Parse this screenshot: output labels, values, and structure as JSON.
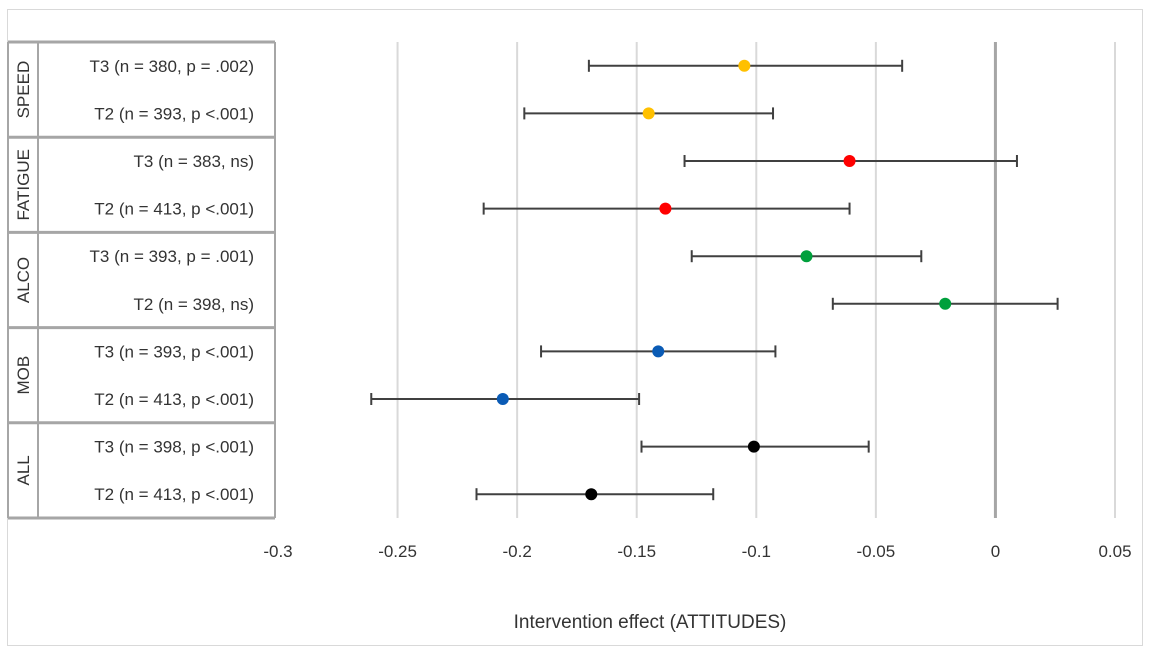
{
  "chart_data": {
    "type": "scatter",
    "subtype": "forest-plot-with-error-bars",
    "title": "",
    "xlabel": "Intervention effect (ATTITUDES)",
    "ylabel": "",
    "xlim": [
      -0.3,
      0.05
    ],
    "xticks": [
      -0.3,
      -0.25,
      -0.2,
      -0.15,
      -0.1,
      -0.05,
      0,
      0.05
    ],
    "xtick_labels": [
      "-0.3",
      "-0.25",
      "-0.2",
      "-0.15",
      "-0.1",
      "-0.05",
      "0",
      "0.05"
    ],
    "grid": true,
    "reference_line": 0,
    "groups": [
      {
        "name": "SPEED",
        "color": "#FFC000",
        "rows": [
          {
            "label": "T3 (n = 380, p = .002)",
            "estimate": -0.105,
            "lower": -0.17,
            "upper": -0.039
          },
          {
            "label": "T2 (n = 393, p <.001)",
            "estimate": -0.145,
            "lower": -0.197,
            "upper": -0.093
          }
        ]
      },
      {
        "name": "FATIGUE",
        "color": "#FF0000",
        "rows": [
          {
            "label": "T3 (n = 383, ns)",
            "estimate": -0.061,
            "lower": -0.13,
            "upper": 0.009
          },
          {
            "label": "T2 (n = 413, p <.001)",
            "estimate": -0.138,
            "lower": -0.214,
            "upper": -0.061
          }
        ]
      },
      {
        "name": "ALCO",
        "color": "#00A03C",
        "rows": [
          {
            "label": "T3 (n = 393, p = .001)",
            "estimate": -0.079,
            "lower": -0.127,
            "upper": -0.031
          },
          {
            "label": "T2 (n = 398, ns)",
            "estimate": -0.021,
            "lower": -0.068,
            "upper": 0.026
          }
        ]
      },
      {
        "name": "MOB",
        "color": "#0A5BB5",
        "rows": [
          {
            "label": "T3 (n = 393, p <.001)",
            "estimate": -0.141,
            "lower": -0.19,
            "upper": -0.092
          },
          {
            "label": "T2 (n = 413, p <.001)",
            "estimate": -0.206,
            "lower": -0.261,
            "upper": -0.149
          }
        ]
      },
      {
        "name": "ALL",
        "color": "#000000",
        "rows": [
          {
            "label": "T3 (n = 398, p <.001)",
            "estimate": -0.101,
            "lower": -0.148,
            "upper": -0.053
          },
          {
            "label": "T2 (n = 413, p <.001)",
            "estimate": -0.169,
            "lower": -0.217,
            "upper": -0.118
          }
        ]
      }
    ]
  }
}
